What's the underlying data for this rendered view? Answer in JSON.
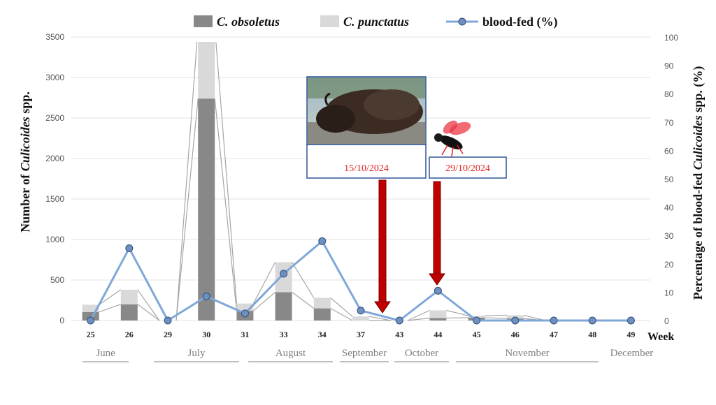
{
  "chart_data": {
    "type": "bar",
    "categories": [
      "25",
      "26",
      "29",
      "30",
      "31",
      "33",
      "34",
      "37",
      "43",
      "44",
      "45",
      "46",
      "47",
      "48",
      "49"
    ],
    "series": [
      {
        "name": "C. obsoletus",
        "kind": "stacked-bar",
        "color": "#888888",
        "values": [
          105,
          200,
          0,
          2740,
          120,
          350,
          150,
          0,
          0,
          30,
          35,
          25,
          0,
          0,
          0
        ]
      },
      {
        "name": "C. punctatus",
        "kind": "stacked-bar",
        "color": "#d9d9d9",
        "values": [
          90,
          180,
          0,
          880,
          90,
          370,
          130,
          50,
          0,
          95,
          25,
          40,
          0,
          0,
          0
        ]
      },
      {
        "name": "blood-fed (%)",
        "kind": "line",
        "axis": "right",
        "color": "#7fa7d8",
        "values": [
          0,
          25.5,
          0,
          8.5,
          2.5,
          16.5,
          28,
          3.5,
          0,
          10.5,
          0,
          0,
          0,
          0,
          0
        ]
      }
    ],
    "legend": {
      "items": [
        {
          "italic": "C. obsoletus",
          "rest": ""
        },
        {
          "italic": "C. punctatus",
          "rest": ""
        },
        {
          "italic": "",
          "rest": "blood-fed (%)"
        }
      ],
      "placement": "top-center"
    },
    "ylabel_left": {
      "pre": "Number of ",
      "italic": "Culicoides",
      "post": " spp."
    },
    "ylabel_right": {
      "pre": "Percentage of blood-fed ",
      "italic": "Culicoides",
      "post": " spp. (%)"
    },
    "xlabel": "Week",
    "ylim_left": [
      0,
      3500
    ],
    "left_ticks": [
      "0",
      "500",
      "1000",
      "1500",
      "2000",
      "2500",
      "3000",
      "3500"
    ],
    "ylim_right": [
      0,
      100
    ],
    "right_ticks": [
      "0",
      "10",
      "20",
      "30",
      "40",
      "50",
      "60",
      "70",
      "80",
      "90",
      "100"
    ],
    "grid": true,
    "months": [
      "June",
      "July",
      "August",
      "September",
      "October",
      "November",
      "December"
    ],
    "annotations": [
      {
        "text": "15/10/2024",
        "arrow_color": "#c00000"
      },
      {
        "text": "29/10/2024",
        "arrow_color": "#c00000"
      }
    ]
  }
}
